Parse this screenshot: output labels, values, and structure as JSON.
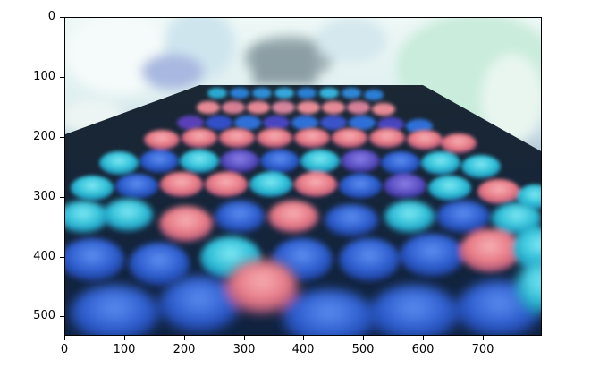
{
  "axes": {
    "x_ticks": [
      "0",
      "100",
      "200",
      "300",
      "400",
      "500",
      "600",
      "700"
    ],
    "y_ticks": [
      "0",
      "100",
      "200",
      "300",
      "400",
      "500"
    ]
  },
  "image": {
    "description": "",
    "colors": {
      "background_top": "#f3fbf8",
      "table_dark": "#1f2d3b",
      "cyan": "#35d2e6",
      "blue": "#2f66d8",
      "pink": "#ef7f8c",
      "deep_blue": "#1e3f96"
    }
  }
}
